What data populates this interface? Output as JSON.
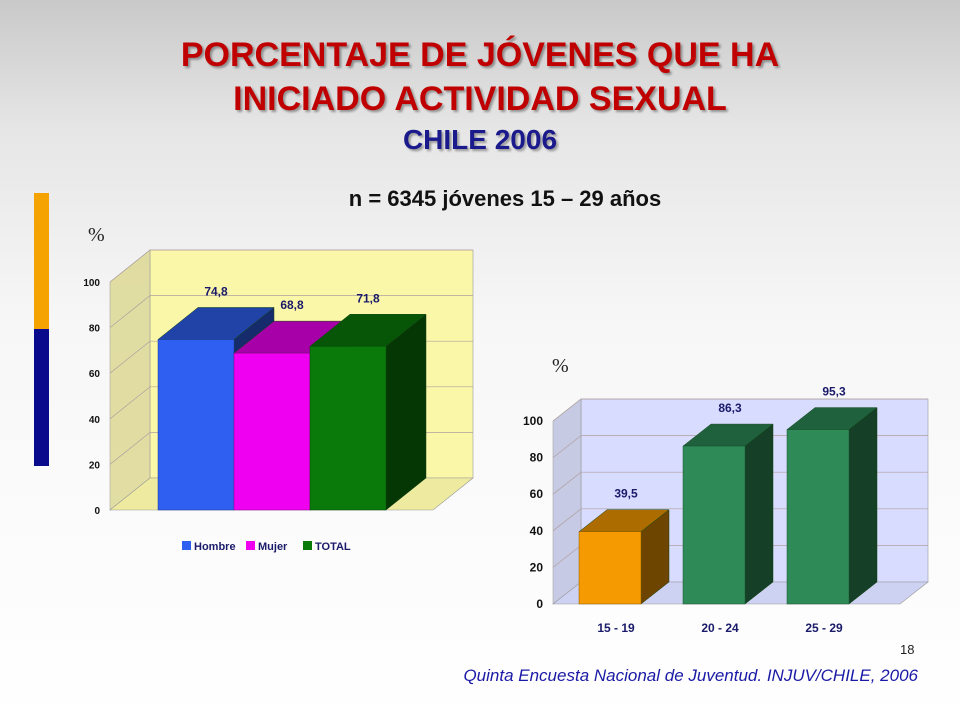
{
  "slide": {
    "title_line1": "PORCENTAJE DE JÓVENES QUE HA",
    "title_line2": "INICIADO ACTIVIDAD SEXUAL",
    "title_line3": "CHILE 2006",
    "subtitle": "n = 6345 jóvenes 15 – 29 años",
    "page_number": "18",
    "source": "Quinta Encuesta Nacional de Juventud. INJUV/CHILE, 2006",
    "accent_colors": [
      "#f5a300",
      "#0a0a8c"
    ]
  },
  "chart_data": [
    {
      "type": "bar",
      "unit_label": "%",
      "categories": [
        "Hombre",
        "Mujer",
        "TOTAL"
      ],
      "values": [
        74.8,
        68.8,
        71.8
      ],
      "value_labels": [
        "74,8",
        "68,8",
        "71,8"
      ],
      "colors": [
        "#2f5ff0",
        "#f000f0",
        "#0a7a0a"
      ],
      "legend": [
        "Hombre",
        "Mujer",
        "TOTAL"
      ],
      "legend_position": "bottom",
      "ylim": [
        0,
        100
      ],
      "yticks": [
        "0",
        "20",
        "40",
        "60",
        "80",
        "100"
      ],
      "grid": true,
      "wall_color": "#fbf7a8"
    },
    {
      "type": "bar",
      "unit_label": "%",
      "categories": [
        "15 - 19",
        "20 - 24",
        "25 - 29"
      ],
      "values": [
        39.5,
        86.3,
        95.3
      ],
      "value_labels": [
        "39,5",
        "86,3",
        "95,3"
      ],
      "colors": [
        "#f59a00",
        "#2e8b57",
        "#2e8b57"
      ],
      "ylim": [
        0,
        100
      ],
      "yticks": [
        "0",
        "20",
        "40",
        "60",
        "80",
        "100"
      ],
      "grid": true,
      "wall_color": "#d8dcff"
    }
  ]
}
